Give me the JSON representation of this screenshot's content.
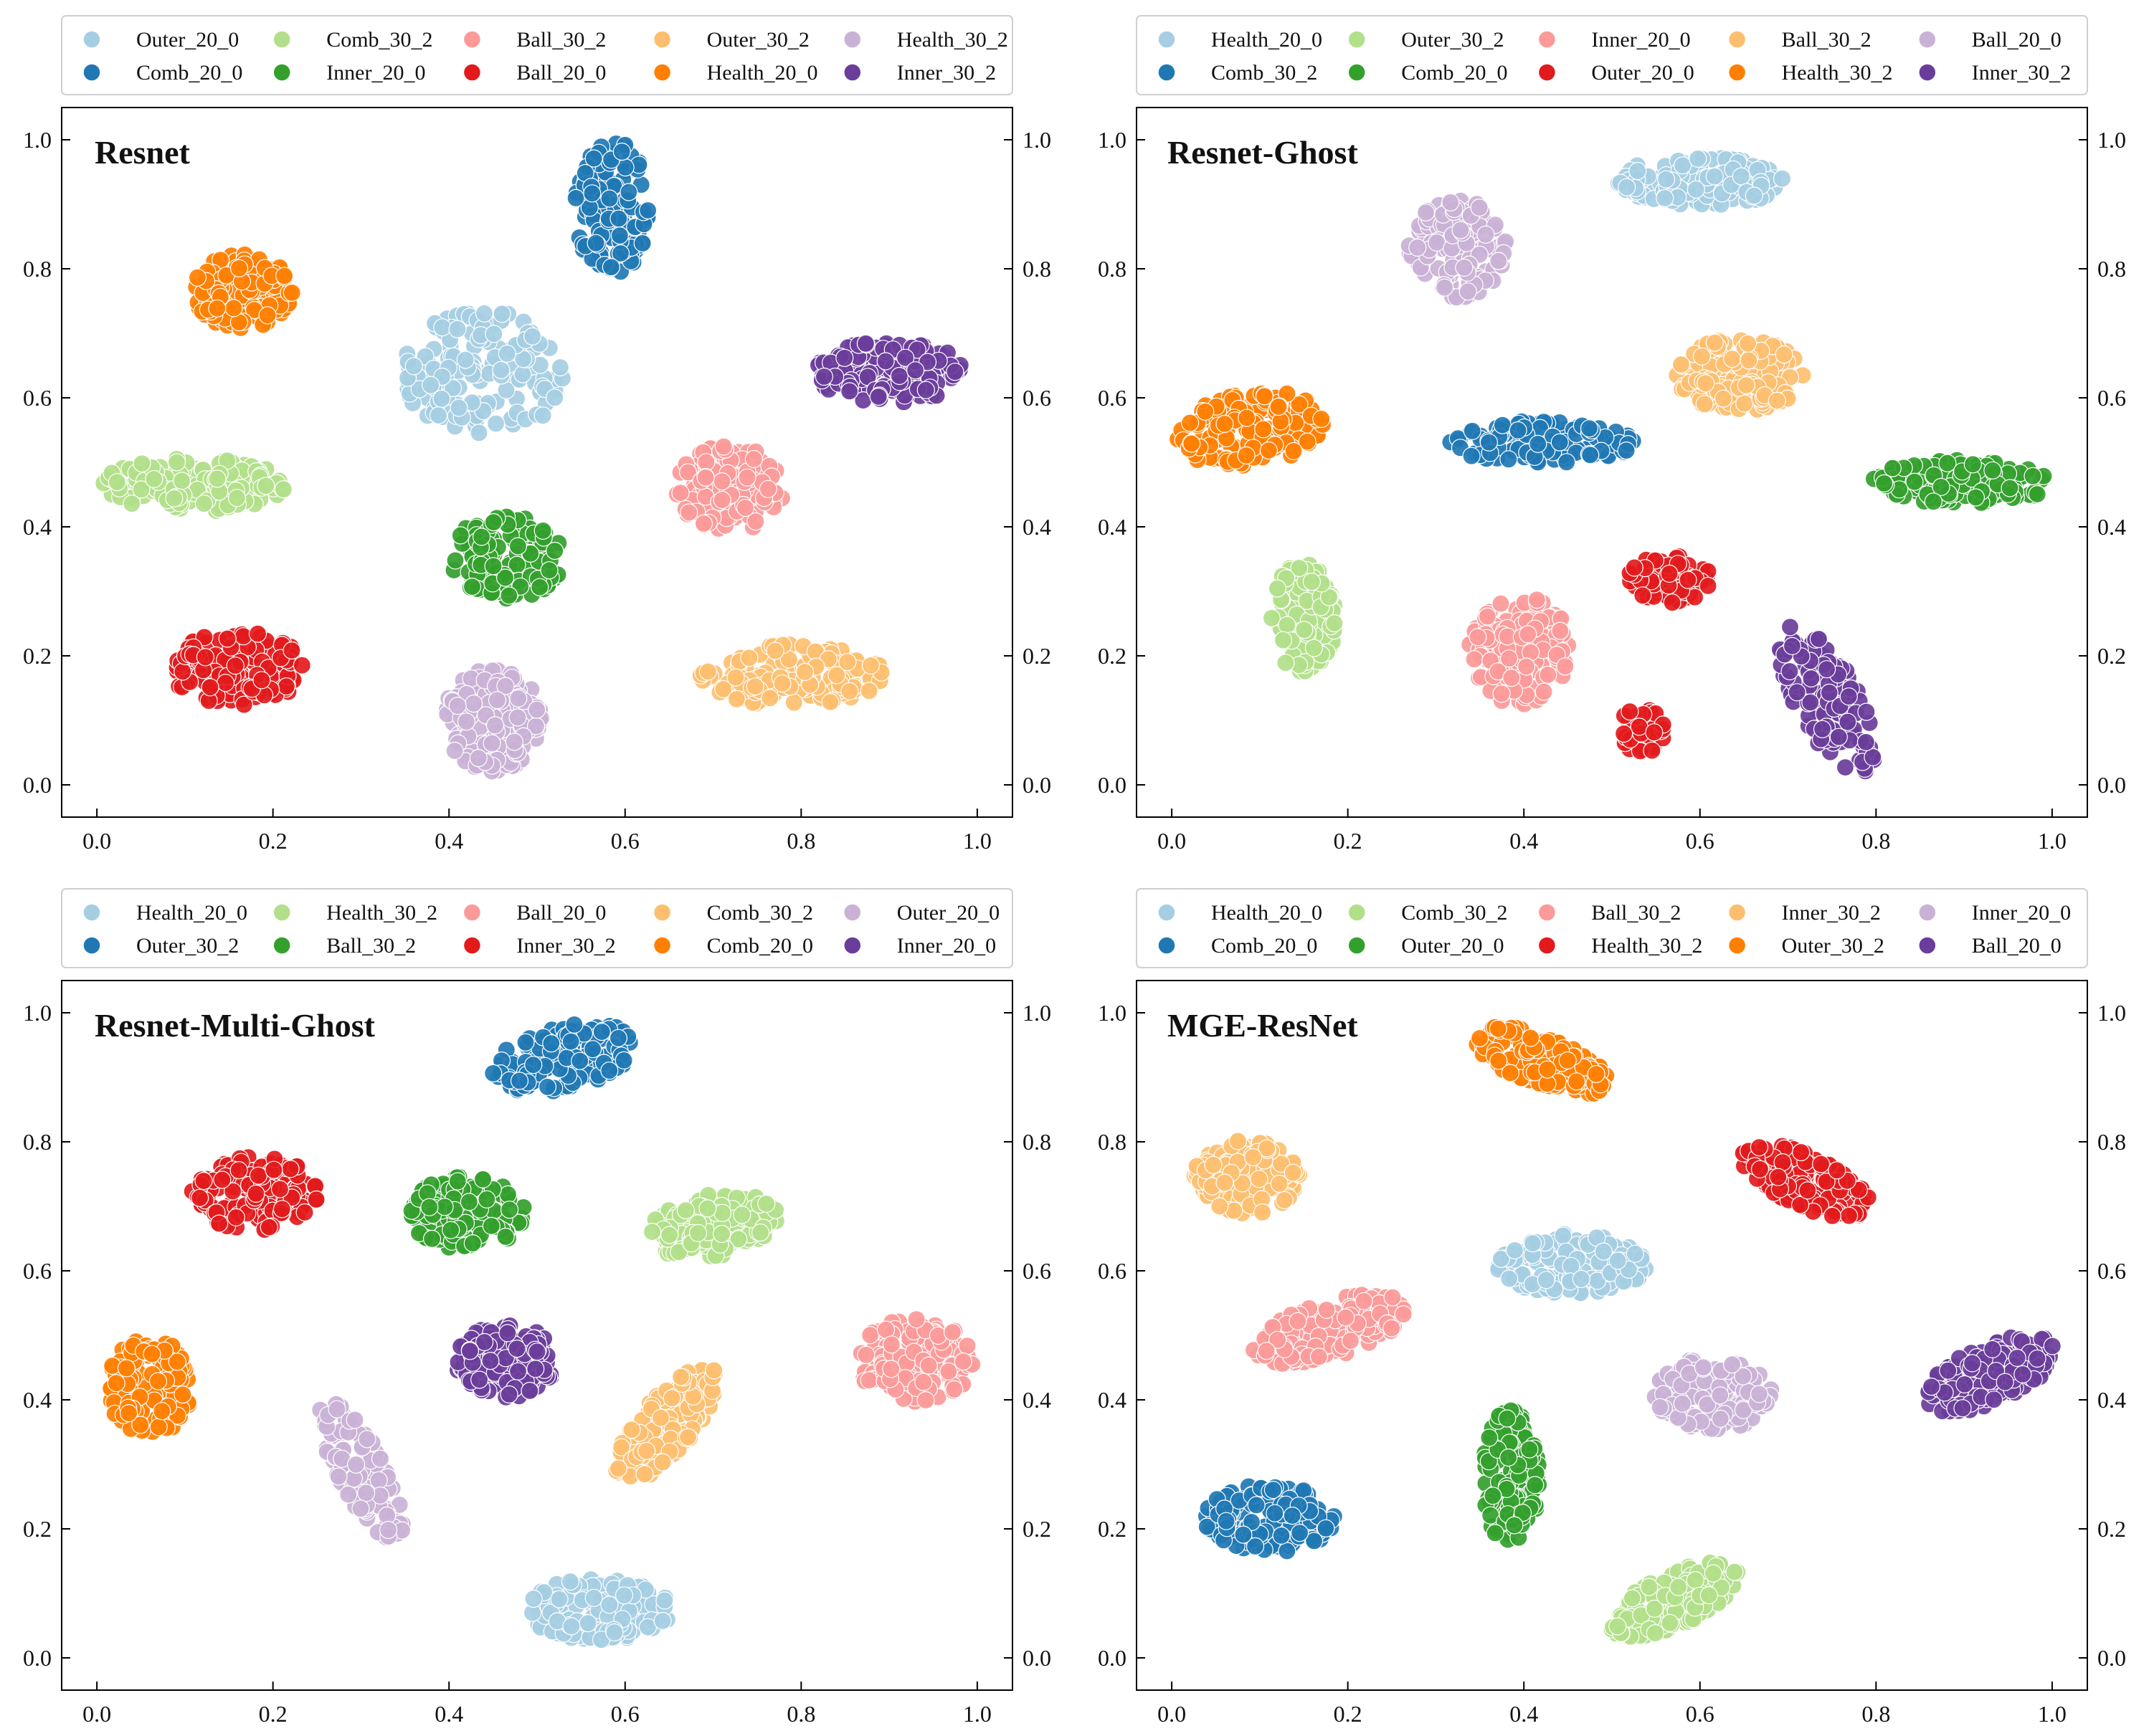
{
  "figure": {
    "panel_count": 4
  },
  "colors": {
    "Health_20_0": "#a6cee3",
    "Comb_20_0": "#1f78b4",
    "Comb_30_2": "#b2df8a",
    "Inner_20_0": "#33a02c",
    "Ball_30_2": "#fb9a99",
    "Ball_20_0": "#e31a1c",
    "Outer_30_2": "#fdbf6f",
    "Health_30_2": "#ff7f00",
    "Outer_20_0": "#cab2d6",
    "Inner_30_2": "#6a3d9a"
  },
  "chart_data": [
    {
      "type": "scatter",
      "title": "Resnet",
      "xlabel": "",
      "ylabel": "",
      "xlim": [
        -0.04,
        1.04
      ],
      "ylim": [
        -0.05,
        1.05
      ],
      "xticks": [
        "0.0",
        "0.2",
        "0.4",
        "0.6",
        "0.8",
        "1.0"
      ],
      "yticks": [
        "0.0",
        "0.2",
        "0.4",
        "0.6",
        "0.8",
        "1.0"
      ],
      "legend": [
        {
          "label": "Outer_20_0",
          "color": "#a6cee3"
        },
        {
          "label": "Comb_20_0",
          "color": "#1f78b4"
        },
        {
          "label": "Comb_30_2",
          "color": "#b2df8a"
        },
        {
          "label": "Inner_20_0",
          "color": "#33a02c"
        },
        {
          "label": "Ball_30_2",
          "color": "#fb9a99"
        },
        {
          "label": "Ball_20_0",
          "color": "#e31a1c"
        },
        {
          "label": "Outer_30_2",
          "color": "#fdbf6f"
        },
        {
          "label": "Health_20_0",
          "color": "#ff7f00"
        },
        {
          "label": "Health_30_2",
          "color": "#cab2d6"
        },
        {
          "label": "Inner_30_2",
          "color": "#6a3d9a"
        }
      ],
      "clusters": [
        {
          "label": "Outer_20_0",
          "color": "#a6cee3",
          "cx": 0.44,
          "cy": 0.64,
          "sx": 0.05,
          "sy": 0.05,
          "angle": -35,
          "n": 150
        },
        {
          "label": "Comb_20_0",
          "color": "#1f78b4",
          "cx": 0.585,
          "cy": 0.895,
          "sx": 0.022,
          "sy": 0.055,
          "angle": 0,
          "n": 130
        },
        {
          "label": "Comb_30_2",
          "color": "#b2df8a",
          "cx": 0.11,
          "cy": 0.465,
          "sx": 0.055,
          "sy": 0.022,
          "angle": 0,
          "n": 150
        },
        {
          "label": "Inner_20_0",
          "color": "#33a02c",
          "cx": 0.465,
          "cy": 0.35,
          "sx": 0.035,
          "sy": 0.035,
          "angle": 0,
          "n": 130
        },
        {
          "label": "Ball_30_2",
          "color": "#fb9a99",
          "cx": 0.72,
          "cy": 0.46,
          "sx": 0.033,
          "sy": 0.035,
          "angle": 0,
          "n": 150
        },
        {
          "label": "Ball_20_0",
          "color": "#e31a1c",
          "cx": 0.16,
          "cy": 0.18,
          "sx": 0.04,
          "sy": 0.03,
          "angle": 0,
          "n": 150
        },
        {
          "label": "Outer_30_2",
          "color": "#fdbf6f",
          "cx": 0.79,
          "cy": 0.17,
          "sx": 0.055,
          "sy": 0.025,
          "angle": 0,
          "n": 150
        },
        {
          "label": "Health_20_0",
          "color": "#ff7f00",
          "cx": 0.165,
          "cy": 0.765,
          "sx": 0.03,
          "sy": 0.03,
          "angle": 0,
          "n": 150
        },
        {
          "label": "Health_30_2",
          "color": "#cab2d6",
          "cx": 0.45,
          "cy": 0.1,
          "sx": 0.03,
          "sy": 0.042,
          "angle": 0,
          "n": 150
        },
        {
          "label": "Inner_30_2",
          "color": "#6a3d9a",
          "cx": 0.9,
          "cy": 0.64,
          "sx": 0.045,
          "sy": 0.025,
          "angle": 0,
          "n": 150
        }
      ]
    },
    {
      "type": "scatter",
      "title": "Resnet-Ghost",
      "xlabel": "",
      "ylabel": "",
      "xlim": [
        -0.04,
        1.04
      ],
      "ylim": [
        -0.05,
        1.05
      ],
      "xticks": [
        "0.0",
        "0.2",
        "0.4",
        "0.6",
        "0.8",
        "1.0"
      ],
      "yticks": [
        "0.0",
        "0.2",
        "0.4",
        "0.6",
        "0.8",
        "1.0"
      ],
      "legend": [
        {
          "label": "Health_20_0",
          "color": "#a6cee3"
        },
        {
          "label": "Comb_30_2",
          "color": "#1f78b4"
        },
        {
          "label": "Outer_30_2",
          "color": "#b2df8a"
        },
        {
          "label": "Comb_20_0",
          "color": "#33a02c"
        },
        {
          "label": "Inner_20_0",
          "color": "#fb9a99"
        },
        {
          "label": "Outer_20_0",
          "color": "#e31a1c"
        },
        {
          "label": "Ball_30_2",
          "color": "#fdbf6f"
        },
        {
          "label": "Health_30_2",
          "color": "#ff7f00"
        },
        {
          "label": "Ball_20_0",
          "color": "#cab2d6"
        },
        {
          "label": "Inner_30_2",
          "color": "#6a3d9a"
        }
      ],
      "clusters": [
        {
          "label": "Health_20_0",
          "color": "#a6cee3",
          "cx": 0.6,
          "cy": 0.935,
          "sx": 0.05,
          "sy": 0.02,
          "angle": 0,
          "n": 150
        },
        {
          "label": "Comb_30_2",
          "color": "#1f78b4",
          "cx": 0.42,
          "cy": 0.53,
          "sx": 0.055,
          "sy": 0.018,
          "angle": 0,
          "n": 130
        },
        {
          "label": "Outer_30_2",
          "color": "#b2df8a",
          "cx": 0.15,
          "cy": 0.26,
          "sx": 0.02,
          "sy": 0.045,
          "angle": 0,
          "n": 130
        },
        {
          "label": "Comb_20_0",
          "color": "#33a02c",
          "cx": 0.9,
          "cy": 0.47,
          "sx": 0.055,
          "sy": 0.018,
          "angle": 0,
          "n": 150
        },
        {
          "label": "Inner_20_0",
          "color": "#fb9a99",
          "cx": 0.395,
          "cy": 0.21,
          "sx": 0.03,
          "sy": 0.045,
          "angle": 0,
          "n": 150
        },
        {
          "label": "Outer_20_0",
          "color": "#e31a1c",
          "cx": 0.565,
          "cy": 0.32,
          "sx": 0.025,
          "sy": 0.02,
          "angle": 0,
          "n": 70
        },
        {
          "label": "Outer_20_0",
          "color": "#e31a1c",
          "cx": 0.535,
          "cy": 0.085,
          "sx": 0.015,
          "sy": 0.02,
          "angle": 0,
          "n": 40
        },
        {
          "label": "Ball_30_2",
          "color": "#fdbf6f",
          "cx": 0.645,
          "cy": 0.635,
          "sx": 0.038,
          "sy": 0.03,
          "angle": 0,
          "n": 150
        },
        {
          "label": "Health_30_2",
          "color": "#ff7f00",
          "cx": 0.09,
          "cy": 0.55,
          "sx": 0.045,
          "sy": 0.03,
          "angle": 15,
          "n": 150
        },
        {
          "label": "Ball_20_0",
          "color": "#cab2d6",
          "cx": 0.325,
          "cy": 0.83,
          "sx": 0.03,
          "sy": 0.04,
          "angle": 0,
          "n": 130
        },
        {
          "label": "Inner_30_2",
          "color": "#6a3d9a",
          "cx": 0.745,
          "cy": 0.13,
          "sx": 0.02,
          "sy": 0.065,
          "angle": 20,
          "n": 130
        }
      ]
    },
    {
      "type": "scatter",
      "title": "Resnet-Multi-Ghost",
      "xlabel": "",
      "ylabel": "",
      "xlim": [
        -0.04,
        1.04
      ],
      "ylim": [
        -0.05,
        1.05
      ],
      "xticks": [
        "0.0",
        "0.2",
        "0.4",
        "0.6",
        "0.8",
        "1.0"
      ],
      "yticks": [
        "0.0",
        "0.2",
        "0.4",
        "0.6",
        "0.8",
        "1.0"
      ],
      "legend": [
        {
          "label": "Health_20_0",
          "color": "#a6cee3"
        },
        {
          "label": "Outer_30_2",
          "color": "#1f78b4"
        },
        {
          "label": "Health_30_2",
          "color": "#b2df8a"
        },
        {
          "label": "Ball_30_2",
          "color": "#33a02c"
        },
        {
          "label": "Ball_20_0",
          "color": "#fb9a99"
        },
        {
          "label": "Inner_30_2",
          "color": "#e31a1c"
        },
        {
          "label": "Comb_30_2",
          "color": "#fdbf6f"
        },
        {
          "label": "Comb_20_0",
          "color": "#ff7f00"
        },
        {
          "label": "Outer_20_0",
          "color": "#cab2d6"
        },
        {
          "label": "Inner_20_0",
          "color": "#6a3d9a"
        }
      ],
      "clusters": [
        {
          "label": "Health_20_0",
          "color": "#a6cee3",
          "cx": 0.57,
          "cy": 0.075,
          "sx": 0.045,
          "sy": 0.025,
          "angle": 0,
          "n": 150
        },
        {
          "label": "Outer_30_2",
          "color": "#1f78b4",
          "cx": 0.53,
          "cy": 0.93,
          "sx": 0.045,
          "sy": 0.025,
          "angle": 20,
          "n": 150
        },
        {
          "label": "Health_30_2",
          "color": "#b2df8a",
          "cx": 0.7,
          "cy": 0.67,
          "sx": 0.04,
          "sy": 0.025,
          "angle": 15,
          "n": 150
        },
        {
          "label": "Ball_30_2",
          "color": "#33a02c",
          "cx": 0.42,
          "cy": 0.69,
          "sx": 0.035,
          "sy": 0.03,
          "angle": 0,
          "n": 150
        },
        {
          "label": "Ball_20_0",
          "color": "#fb9a99",
          "cx": 0.93,
          "cy": 0.46,
          "sx": 0.035,
          "sy": 0.035,
          "angle": 0,
          "n": 130
        },
        {
          "label": "Inner_30_2",
          "color": "#e31a1c",
          "cx": 0.18,
          "cy": 0.72,
          "sx": 0.038,
          "sy": 0.03,
          "angle": 0,
          "n": 150
        },
        {
          "label": "Comb_30_2",
          "color": "#fdbf6f",
          "cx": 0.645,
          "cy": 0.36,
          "sx": 0.018,
          "sy": 0.055,
          "angle": -30,
          "n": 150
        },
        {
          "label": "Comb_20_0",
          "color": "#ff7f00",
          "cx": 0.06,
          "cy": 0.42,
          "sx": 0.025,
          "sy": 0.04,
          "angle": 0,
          "n": 150
        },
        {
          "label": "Outer_20_0",
          "color": "#cab2d6",
          "cx": 0.3,
          "cy": 0.29,
          "sx": 0.015,
          "sy": 0.06,
          "angle": 20,
          "n": 120
        },
        {
          "label": "Inner_20_0",
          "color": "#6a3d9a",
          "cx": 0.465,
          "cy": 0.46,
          "sx": 0.03,
          "sy": 0.03,
          "angle": 0,
          "n": 150
        }
      ]
    },
    {
      "type": "scatter",
      "title": "MGE-ResNet",
      "xlabel": "",
      "ylabel": "",
      "xlim": [
        -0.04,
        1.04
      ],
      "ylim": [
        -0.05,
        1.05
      ],
      "xticks": [
        "0.0",
        "0.2",
        "0.4",
        "0.6",
        "0.8",
        "1.0"
      ],
      "yticks": [
        "0.0",
        "0.2",
        "0.4",
        "0.6",
        "0.8",
        "1.0"
      ],
      "legend": [
        {
          "label": "Health_20_0",
          "color": "#a6cee3"
        },
        {
          "label": "Comb_20_0",
          "color": "#1f78b4"
        },
        {
          "label": "Comb_30_2",
          "color": "#b2df8a"
        },
        {
          "label": "Outer_20_0",
          "color": "#33a02c"
        },
        {
          "label": "Ball_30_2",
          "color": "#fb9a99"
        },
        {
          "label": "Health_30_2",
          "color": "#e31a1c"
        },
        {
          "label": "Inner_30_2",
          "color": "#fdbf6f"
        },
        {
          "label": "Outer_30_2",
          "color": "#ff7f00"
        },
        {
          "label": "Inner_20_0",
          "color": "#cab2d6"
        },
        {
          "label": "Ball_20_0",
          "color": "#6a3d9a"
        }
      ],
      "clusters": [
        {
          "label": "Health_20_0",
          "color": "#a6cee3",
          "cx": 0.455,
          "cy": 0.61,
          "sx": 0.045,
          "sy": 0.025,
          "angle": 0,
          "n": 150
        },
        {
          "label": "Comb_20_0",
          "color": "#1f78b4",
          "cx": 0.11,
          "cy": 0.215,
          "sx": 0.04,
          "sy": 0.028,
          "angle": 0,
          "n": 150
        },
        {
          "label": "Comb_30_2",
          "color": "#b2df8a",
          "cx": 0.57,
          "cy": 0.09,
          "sx": 0.045,
          "sy": 0.02,
          "angle": 35,
          "n": 150
        },
        {
          "label": "Outer_20_0",
          "color": "#33a02c",
          "cx": 0.385,
          "cy": 0.28,
          "sx": 0.017,
          "sy": 0.055,
          "angle": 0,
          "n": 130
        },
        {
          "label": "Ball_30_2",
          "color": "#fb9a99",
          "cx": 0.18,
          "cy": 0.51,
          "sx": 0.05,
          "sy": 0.022,
          "angle": 25,
          "n": 150
        },
        {
          "label": "Health_30_2",
          "color": "#e31a1c",
          "cx": 0.72,
          "cy": 0.74,
          "sx": 0.045,
          "sy": 0.02,
          "angle": -35,
          "n": 150
        },
        {
          "label": "Inner_30_2",
          "color": "#fdbf6f",
          "cx": 0.085,
          "cy": 0.745,
          "sx": 0.032,
          "sy": 0.03,
          "angle": 0,
          "n": 150
        },
        {
          "label": "Outer_30_2",
          "color": "#ff7f00",
          "cx": 0.42,
          "cy": 0.925,
          "sx": 0.045,
          "sy": 0.02,
          "angle": -30,
          "n": 150
        },
        {
          "label": "Inner_20_0",
          "color": "#cab2d6",
          "cx": 0.615,
          "cy": 0.41,
          "sx": 0.035,
          "sy": 0.03,
          "angle": 0,
          "n": 150
        },
        {
          "label": "Ball_20_0",
          "color": "#6a3d9a",
          "cx": 0.93,
          "cy": 0.44,
          "sx": 0.045,
          "sy": 0.022,
          "angle": 35,
          "n": 150
        }
      ]
    }
  ]
}
